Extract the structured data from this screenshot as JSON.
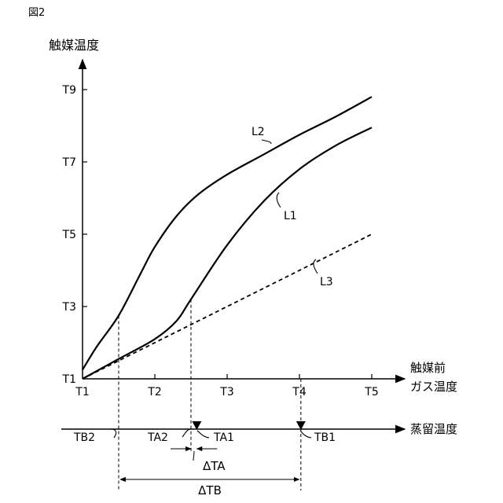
{
  "figure_label": "図2",
  "chart_data": {
    "type": "line",
    "ylabel": "触媒温度",
    "xlabel_lines": [
      "触媒前",
      "ガス温度"
    ],
    "x_ticks": [
      "T1",
      "T2",
      "T3",
      "T4",
      "T5"
    ],
    "y_ticks": [
      "T1",
      "T3",
      "T5",
      "T7",
      "T9"
    ],
    "xlim": [
      1,
      5
    ],
    "ylim": [
      1,
      9.8
    ],
    "grid": false,
    "series": [
      {
        "name": "L2",
        "style": "solid",
        "points": [
          [
            1.0,
            1.25
          ],
          [
            1.2,
            1.9
          ],
          [
            1.5,
            2.75
          ],
          [
            1.8,
            3.9
          ],
          [
            2.0,
            4.65
          ],
          [
            2.3,
            5.5
          ],
          [
            2.6,
            6.1
          ],
          [
            3.0,
            6.65
          ],
          [
            3.5,
            7.2
          ],
          [
            4.0,
            7.75
          ],
          [
            4.5,
            8.25
          ],
          [
            5.0,
            8.8
          ]
        ]
      },
      {
        "name": "L1",
        "style": "solid",
        "points": [
          [
            1.0,
            1.0
          ],
          [
            1.5,
            1.55
          ],
          [
            2.0,
            2.1
          ],
          [
            2.3,
            2.6
          ],
          [
            2.5,
            3.2
          ],
          [
            3.0,
            4.7
          ],
          [
            3.5,
            5.9
          ],
          [
            4.0,
            6.8
          ],
          [
            4.5,
            7.45
          ],
          [
            5.0,
            7.95
          ]
        ]
      },
      {
        "name": "L3",
        "style": "dashed",
        "points": [
          [
            1.0,
            1.0
          ],
          [
            5.0,
            5.0
          ]
        ]
      }
    ],
    "secondary_axis": {
      "label": "蒸留温度",
      "markers": [
        {
          "name": "TB2",
          "x": 1.5
        },
        {
          "name": "TA2",
          "x": 2.5
        },
        {
          "name": "TA1",
          "x": 2.58,
          "triangle": true
        },
        {
          "name": "TB1",
          "x": 4.02,
          "triangle": true
        }
      ],
      "spans": [
        {
          "name": "ΔTA",
          "from": 2.5,
          "to": 2.58
        },
        {
          "name": "ΔTB",
          "from": 1.5,
          "to": 4.02
        }
      ]
    }
  }
}
